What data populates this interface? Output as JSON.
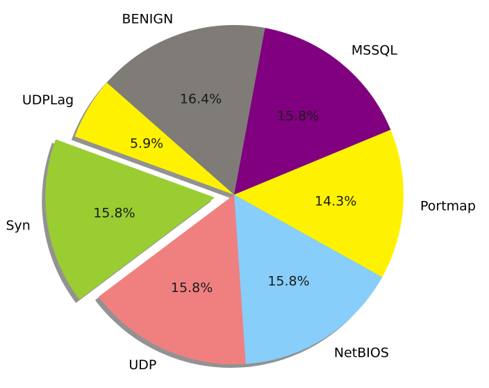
{
  "chart_data": {
    "type": "pie",
    "slices": [
      {
        "label": "MSSQL",
        "value": 15.8,
        "pct_label": "15.8%",
        "color": "#800080",
        "exploded": false
      },
      {
        "label": "Portmap",
        "value": 14.3,
        "pct_label": "14.3%",
        "color": "#fff200",
        "exploded": false
      },
      {
        "label": "NetBIOS",
        "value": 15.8,
        "pct_label": "15.8%",
        "color": "#87cefa",
        "exploded": false
      },
      {
        "label": "UDP",
        "value": 15.8,
        "pct_label": "15.8%",
        "color": "#f08080",
        "exploded": false
      },
      {
        "label": "Syn",
        "value": 15.8,
        "pct_label": "15.8%",
        "color": "#9acd32",
        "exploded": true
      },
      {
        "label": "UDPLag",
        "value": 5.9,
        "pct_label": "5.9%",
        "color": "#fff200",
        "exploded": false
      },
      {
        "label": "BENIGN",
        "value": 16.4,
        "pct_label": "16.4%",
        "color": "#7f7c78",
        "exploded": false
      }
    ],
    "shadow": true
  }
}
